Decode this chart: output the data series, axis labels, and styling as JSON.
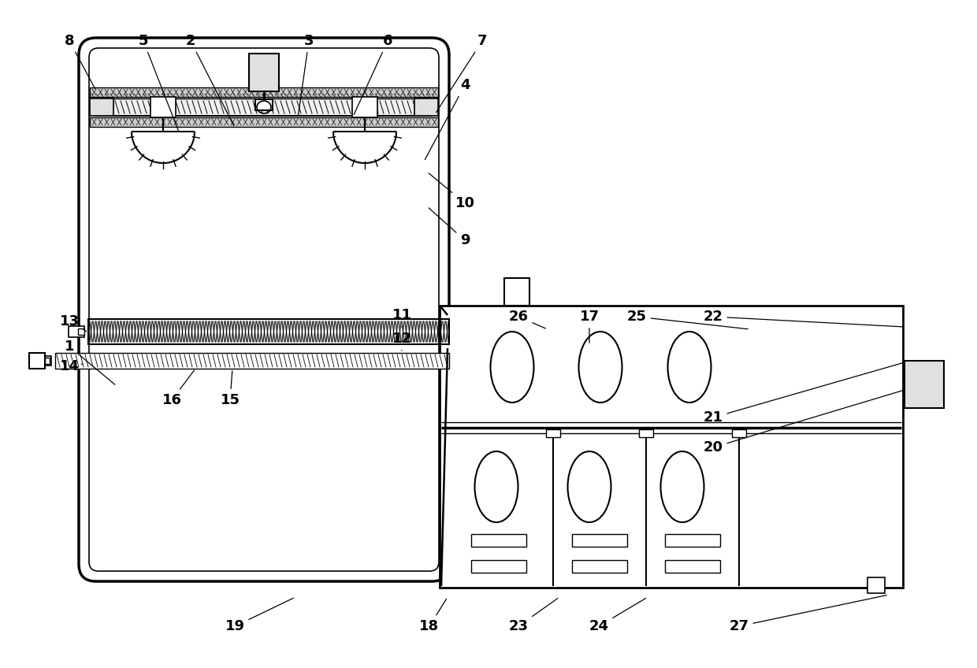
{
  "bg_color": "#ffffff",
  "lw_thick": 2.5,
  "lw_med": 1.8,
  "lw_thin": 1.0,
  "label_fontsize": 13,
  "labels": [
    [
      "1",
      88,
      440,
      148,
      490
    ],
    [
      "2",
      242,
      52,
      298,
      162
    ],
    [
      "3",
      392,
      52,
      378,
      150
    ],
    [
      "4",
      590,
      108,
      538,
      205
    ],
    [
      "5",
      182,
      52,
      228,
      170
    ],
    [
      "6",
      492,
      52,
      448,
      148
    ],
    [
      "7",
      612,
      52,
      552,
      145
    ],
    [
      "8",
      88,
      52,
      122,
      115
    ],
    [
      "9",
      590,
      305,
      542,
      262
    ],
    [
      "10",
      590,
      258,
      542,
      218
    ],
    [
      "11",
      510,
      400,
      510,
      418
    ],
    [
      "12",
      510,
      430,
      510,
      448
    ],
    [
      "13",
      88,
      408,
      112,
      422
    ],
    [
      "14",
      88,
      465,
      105,
      462
    ],
    [
      "15",
      292,
      508,
      295,
      468
    ],
    [
      "16",
      218,
      508,
      248,
      468
    ],
    [
      "17",
      748,
      402,
      748,
      438
    ],
    [
      "18",
      545,
      795,
      568,
      758
    ],
    [
      "19",
      298,
      795,
      375,
      758
    ],
    [
      "20",
      905,
      568,
      1148,
      495
    ],
    [
      "21",
      905,
      530,
      1148,
      460
    ],
    [
      "22",
      905,
      402,
      1148,
      415
    ],
    [
      "23",
      658,
      795,
      710,
      758
    ],
    [
      "24",
      760,
      795,
      822,
      758
    ],
    [
      "25",
      808,
      402,
      952,
      418
    ],
    [
      "26",
      658,
      402,
      695,
      418
    ],
    [
      "27",
      938,
      795,
      1128,
      755
    ]
  ]
}
